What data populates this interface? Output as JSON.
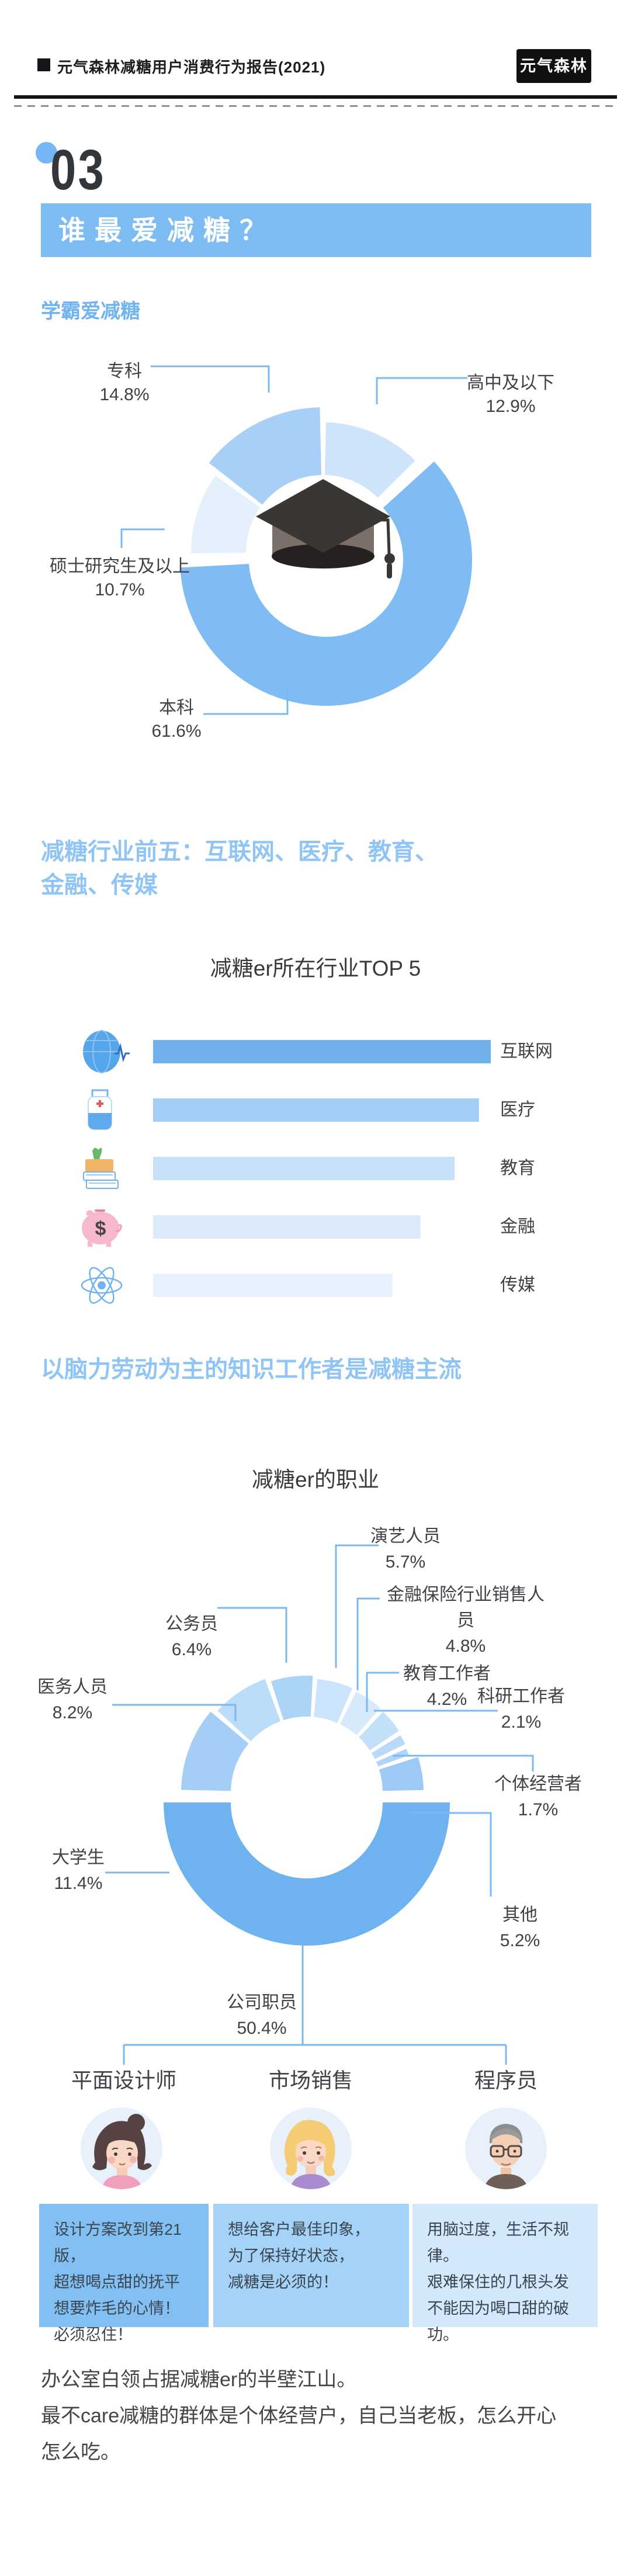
{
  "header": {
    "title": "元气森林减糖用户消费行为报告(2021)",
    "logo": "元气森林"
  },
  "section_badge": "03",
  "banner": "谁最爱减糖？",
  "sub_heading_1": "学霸爱减糖",
  "section2_title_line1": "减糖行业前五：互联网、医疗、教育、",
  "section2_title_line2": "金融、传媒",
  "section3_title": "以脑力劳动为主的知识工作者是减糖主流",
  "colors": {
    "accent_blue": "#7cbcf2",
    "title_blue": "#8fc4f6",
    "leader_line": "#7ab8f1",
    "text_dark": "#3f4146",
    "edu_segments": [
      "#cee4fb",
      "#7fbcf4",
      "#e4f1fd",
      "#a8d0f7"
    ],
    "bar_colors": [
      "#6fb0ec",
      "#a2cdf4",
      "#c6e0f9",
      "#daeafb",
      "#e7f1fd"
    ],
    "occ_petals": [
      "#a5cef6",
      "#bcddf9",
      "#acd4f7",
      "#cbe4fb",
      "#d6eafc",
      "#c3e0fa",
      "#b8daf8",
      "#b0d6f7",
      "#9dc9f4"
    ],
    "occ_semicircle": "#6eb2ef",
    "card_bg": [
      "#82c0f3",
      "#a5d2f7",
      "#d4e8fb"
    ]
  },
  "chart_data": [
    {
      "type": "donut",
      "name": "education_of_sugar_reducers",
      "center_icon": "graduation-cap",
      "legend_position": "outside-callouts",
      "series": [
        {
          "label": "高中及以下",
          "value": 12.9,
          "pct_text": "12.9%"
        },
        {
          "label": "本科",
          "value": 61.6,
          "pct_text": "61.6%"
        },
        {
          "label": "硕士研究生及以上",
          "value": 10.7,
          "pct_text": "10.7%"
        },
        {
          "label": "专科",
          "value": 14.8,
          "pct_text": "14.8%"
        }
      ]
    },
    {
      "type": "bar",
      "name": "industry_top5",
      "title": "减糖er所在行业TOP 5",
      "orientation": "horizontal",
      "categories": [
        "互联网",
        "医疗",
        "教育",
        "金融",
        "传媒"
      ],
      "icons": [
        "globe-internet-icon",
        "medicine-bottle-icon",
        "books-education-icon",
        "piggy-bank-icon",
        "atom-icon"
      ],
      "relative_length_pct": [
        100,
        96.5,
        89.3,
        79.2,
        70.9
      ],
      "values_shown": false
    },
    {
      "type": "donut",
      "name": "occupation_of_sugar_reducers",
      "title": "减糖er的职业",
      "legend_position": "outside-callouts",
      "series": [
        {
          "label": "大学生",
          "value": 11.4,
          "pct_text": "11.4%"
        },
        {
          "label": "医务人员",
          "value": 8.2,
          "pct_text": "8.2%"
        },
        {
          "label": "公务员",
          "value": 6.4,
          "pct_text": "6.4%"
        },
        {
          "label": "演艺人员",
          "value": 5.7,
          "pct_text": "5.7%"
        },
        {
          "label": "金融保险行业销售人员",
          "value": 4.8,
          "pct_text": "4.8%"
        },
        {
          "label": "教育工作者",
          "value": 4.2,
          "pct_text": "4.2%"
        },
        {
          "label": "科研工作者",
          "value": 2.1,
          "pct_text": "2.1%"
        },
        {
          "label": "个体经营者",
          "value": 1.7,
          "pct_text": "1.7%"
        },
        {
          "label": "其他",
          "value": 5.2,
          "pct_text": "5.2%"
        },
        {
          "label": "公司职员",
          "value": 50.4,
          "pct_text": "50.4%"
        }
      ]
    }
  ],
  "personas": [
    {
      "title": "平面设计师",
      "avatar": "designer-woman-avatar",
      "quote_lines": [
        "设计方案改到第21版，",
        "超想喝点甜的抚平",
        "想要炸毛的心情！",
        "必须忍住！"
      ]
    },
    {
      "title": "市场销售",
      "avatar": "saleswoman-avatar",
      "quote_lines": [
        "想给客户最佳印象，",
        "为了保持好状态，",
        "减糖是必须的！"
      ]
    },
    {
      "title": "程序员",
      "avatar": "programmer-man-avatar",
      "quote_lines": [
        "用脑过度，生活不规律。",
        "艰难保住的几根头发",
        "不能因为喝口甜的破功。"
      ]
    }
  ],
  "footer": {
    "lines": [
      "办公室白领占据减糖er的半壁江山。",
      "最不care减糖的群体是个体经营户，自己当老板，怎么开心",
      "怎么吃。"
    ]
  }
}
